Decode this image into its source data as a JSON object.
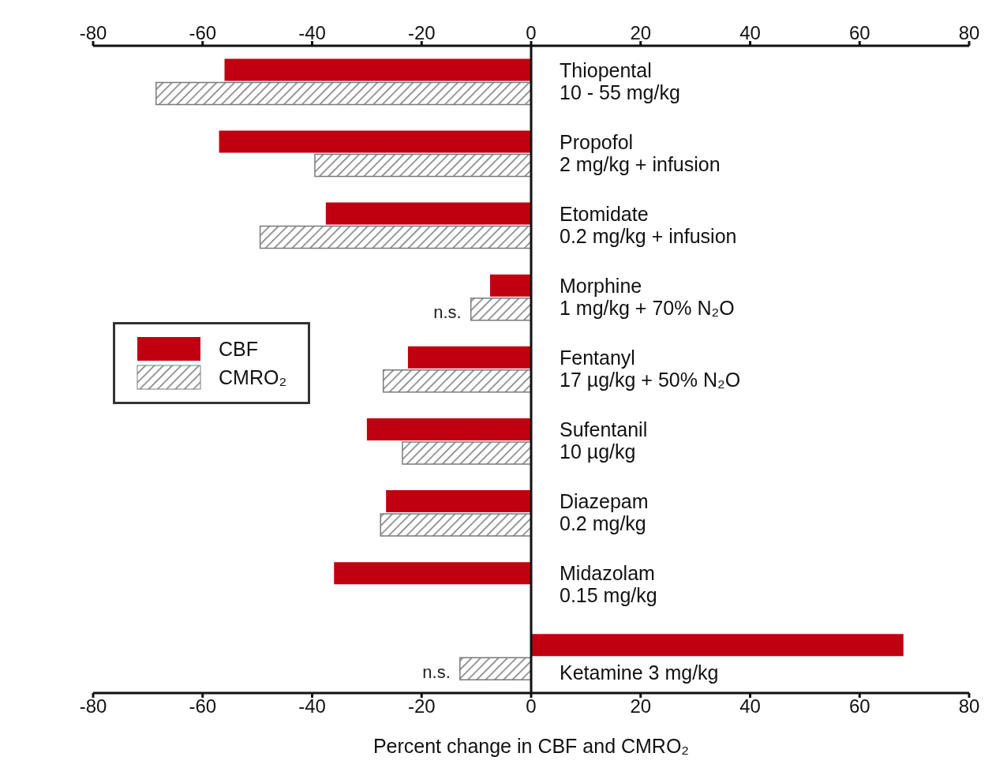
{
  "chart_data": {
    "type": "bar",
    "orientation": "horizontal",
    "categories": [
      "Thiopental\n10 - 55 mg/kg",
      "Propofol\n2 mg/kg + infusion",
      "Etomidate\n0.2 mg/kg + infusion",
      "Morphine\n1 mg/kg + 70% N₂O",
      "Fentanyl\n17 µg/kg + 50% N₂O",
      "Sufentanil\n10 µg/kg",
      "Diazepam\n0.2 mg/kg",
      "Midazolam\n0.15 mg/kg",
      "Ketamine 3 mg/kg"
    ],
    "series": [
      {
        "name": "CBF",
        "color": "#c00010",
        "values": [
          -56,
          -57,
          -37.5,
          -7.5,
          -22.5,
          -30,
          -26.5,
          -36,
          68
        ]
      },
      {
        "name": "CMRO₂",
        "color": "#7a7a7a",
        "values": [
          -68.5,
          -39.5,
          -49.5,
          -11,
          -27,
          -23.5,
          -27.5,
          null,
          -13
        ]
      }
    ],
    "xlim": [
      -80,
      80
    ],
    "xticks": [
      -80,
      -60,
      -40,
      -20,
      0,
      20,
      40,
      60,
      80
    ],
    "x2lim": [
      -80,
      80
    ],
    "x2ticks": [
      -80,
      -60,
      -40,
      -20,
      0,
      20,
      40,
      60,
      80
    ],
    "xlabel": "Percent change in CBF and CMRO₂",
    "annotations": [
      {
        "text": "n.s.",
        "x": -11,
        "y": "Morphine\n1 mg/kg + 70% N₂O"
      },
      {
        "text": "n.s.",
        "x": -13,
        "y": "Ketamine 3 mg/kg"
      }
    ],
    "legend": "left",
    "grid": false
  }
}
